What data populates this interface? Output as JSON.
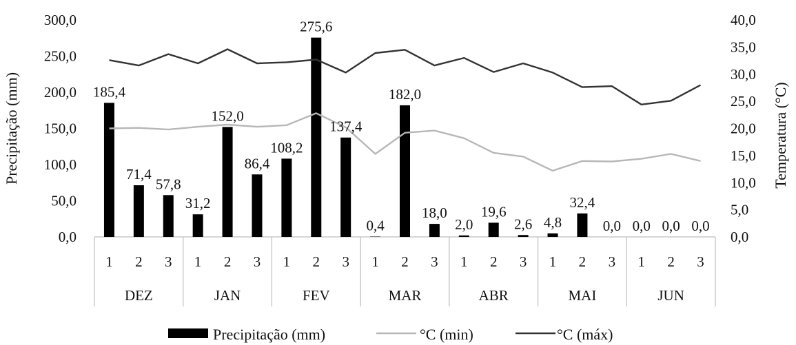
{
  "chart_data": {
    "type": "bar",
    "months": [
      "DEZ",
      "JAN",
      "FEV",
      "MAR",
      "ABR",
      "MAI",
      "JUN"
    ],
    "decendios": [
      "1",
      "2",
      "3"
    ],
    "categories": [
      "DEZ-1",
      "DEZ-2",
      "DEZ-3",
      "JAN-1",
      "JAN-2",
      "JAN-3",
      "FEV-1",
      "FEV-2",
      "FEV-3",
      "MAR-1",
      "MAR-2",
      "MAR-3",
      "ABR-1",
      "ABR-2",
      "ABR-3",
      "MAI-1",
      "MAI-2",
      "MAI-3",
      "JUN-1",
      "JUN-2",
      "JUN-3"
    ],
    "xlabel": "",
    "ylabel": "Precipitação (mm)",
    "y2label": "Temperatura (°C)",
    "ylim": [
      0,
      300
    ],
    "y2lim": [
      0,
      40
    ],
    "yticks": [
      "0,0",
      "50,0",
      "100,0",
      "150,0",
      "200,0",
      "250,0",
      "300,0"
    ],
    "y2ticks": [
      "0,0",
      "5,0",
      "10,0",
      "15,0",
      "20,0",
      "25,0",
      "30,0",
      "35,0",
      "40,0"
    ],
    "grid": false,
    "legend_position": "bottom",
    "series": [
      {
        "name": "Precipitação (mm)",
        "type": "bar",
        "axis": "left",
        "color": "#000000",
        "values": [
          185.4,
          71.4,
          57.8,
          31.2,
          152.0,
          86.4,
          108.2,
          275.6,
          137.4,
          0.4,
          182.0,
          18.0,
          2.0,
          19.6,
          2.6,
          4.8,
          32.4,
          0.0,
          0.0,
          0.0,
          0.0
        ],
        "labels": [
          "185,4",
          "71,4",
          "57,8",
          "31,2",
          "152,0",
          "86,4",
          "108,2",
          "275,6",
          "137,4",
          "0,4",
          "182,0",
          "18,0",
          "2,0",
          "19,6",
          "2,6",
          "4,8",
          "32,4",
          "0,0",
          "0,0",
          "0,0",
          "0,0"
        ]
      },
      {
        "name": "°C (min)",
        "type": "line",
        "axis": "right",
        "color": "#b7b7b7",
        "values": [
          20.0,
          20.1,
          19.8,
          20.3,
          20.7,
          20.3,
          20.6,
          22.8,
          20.2,
          15.3,
          19.2,
          19.6,
          18.2,
          15.5,
          14.8,
          12.2,
          14.0,
          13.9,
          14.4,
          15.3,
          14.0
        ]
      },
      {
        "name": "°C (máx)",
        "type": "line",
        "axis": "right",
        "color": "#333333",
        "values": [
          32.6,
          31.6,
          33.7,
          32.0,
          34.6,
          32.0,
          32.2,
          32.7,
          30.3,
          33.9,
          34.5,
          31.6,
          33.0,
          30.4,
          32.0,
          30.3,
          27.6,
          27.8,
          24.4,
          25.1,
          28.0
        ]
      }
    ]
  }
}
